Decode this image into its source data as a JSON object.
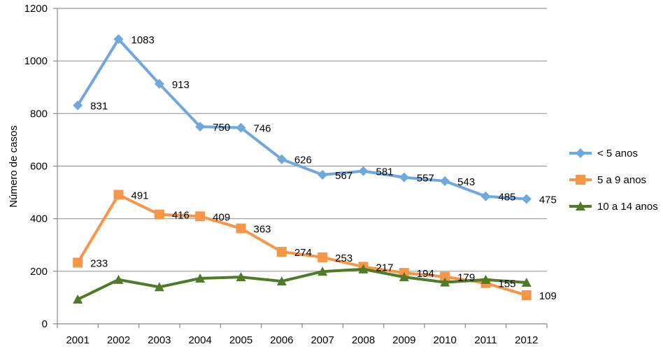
{
  "chart_data": {
    "type": "line",
    "title": "",
    "xlabel": "",
    "ylabel": "Número de casos",
    "ylim": [
      0,
      1200
    ],
    "yticks": [
      0,
      200,
      400,
      600,
      800,
      1000,
      1200
    ],
    "grid": "horizontal",
    "legend_position": "right",
    "categories": [
      "2001",
      "2002",
      "2003",
      "2004",
      "2005",
      "2006",
      "2007",
      "2008",
      "2009",
      "2010",
      "2011",
      "2012"
    ],
    "series": [
      {
        "name": "< 5 anos",
        "color": "#6fa8dc",
        "marker": "diamond",
        "values": [
          831,
          1083,
          913,
          750,
          746,
          626,
          567,
          581,
          557,
          543,
          485,
          475
        ],
        "labels": [
          "831",
          "1083",
          "913",
          "750",
          "746",
          "626",
          "567",
          "581",
          "557",
          "543",
          "485",
          "475"
        ]
      },
      {
        "name": "5 a 9 anos",
        "color": "#f79646",
        "marker": "square",
        "values": [
          233,
          491,
          416,
          409,
          363,
          274,
          253,
          217,
          194,
          179,
          155,
          109
        ],
        "labels": [
          "233",
          "491",
          "416",
          "409",
          "363",
          "274",
          "253",
          "217",
          "194",
          "179",
          "155",
          "109"
        ]
      },
      {
        "name": "10 a 14 anos",
        "color": "#4f7a28",
        "marker": "triangle",
        "values": [
          93,
          168,
          140,
          173,
          178,
          162,
          199,
          208,
          178,
          158,
          168,
          157
        ]
      }
    ]
  }
}
